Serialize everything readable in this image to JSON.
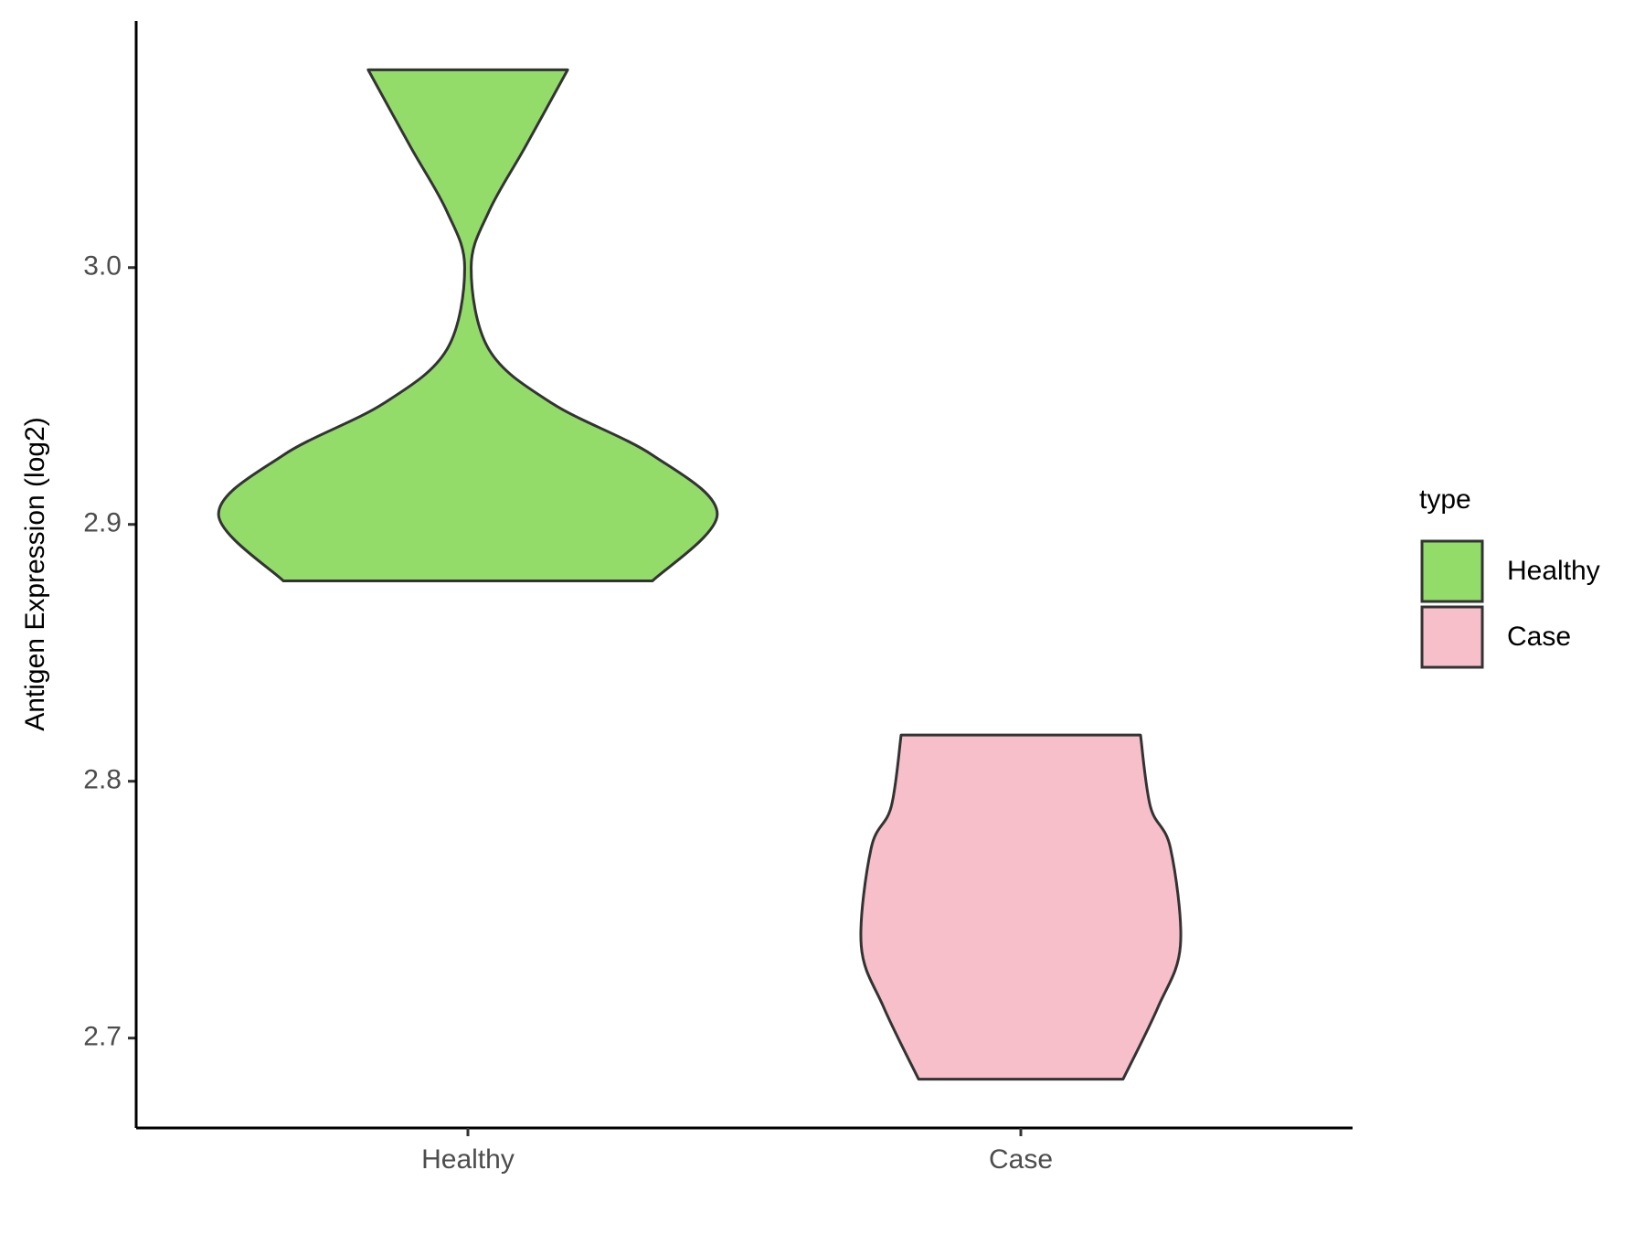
{
  "chart_data": {
    "type": "violin",
    "y_label": "Antigen Expression (log2)",
    "categories": [
      "Healthy",
      "Case"
    ],
    "legend_title": "type",
    "series": [
      {
        "name": "Healthy",
        "color": "#93dc6a",
        "y": [
          2.878,
          2.904,
          2.927,
          2.947,
          2.968,
          3.0,
          3.022,
          3.047,
          3.077
        ],
        "density": [
          0.74,
          1.0,
          0.74,
          0.34,
          0.085,
          0.013,
          0.085,
          0.23,
          0.4
        ]
      },
      {
        "name": "Case",
        "color": "#f7bfca",
        "y": [
          2.684,
          2.712,
          2.736,
          2.774,
          2.79,
          2.818
        ],
        "density": [
          0.41,
          0.55,
          0.64,
          0.6,
          0.52,
          0.48
        ]
      }
    ],
    "ylim": [
      2.665,
      3.096
    ],
    "yticks": [
      2.7,
      2.8,
      2.9,
      {
        "value": 3.0,
        "label": "3.0"
      }
    ],
    "legend_position": "right"
  }
}
